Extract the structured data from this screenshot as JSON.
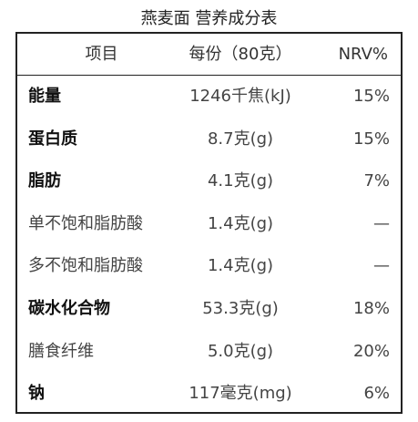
{
  "header": {
    "title": "燕麦面 营养成分表"
  },
  "table": {
    "columns": [
      "项目",
      "每份（80克）",
      "NRV%"
    ],
    "rows": [
      [
        "能量",
        "1246千焦(kJ)",
        "15%"
      ],
      [
        "蛋白质",
        "8.7克(g)",
        "15%"
      ],
      [
        "脂肪",
        "4.1克(g)",
        "7%"
      ],
      [
        "单不饱和脂肪酸",
        "1.4克(g)",
        "—"
      ],
      [
        "多不饱和脂肪酸",
        "1.4克(g)",
        "—"
      ],
      [
        "碳水化合物",
        "53.3克(g)",
        "18%"
      ],
      [
        "膳食纤维",
        "5.0克(g)",
        "20%"
      ],
      [
        "钠",
        "117毫克(mg)",
        "6%"
      ]
    ]
  }
}
